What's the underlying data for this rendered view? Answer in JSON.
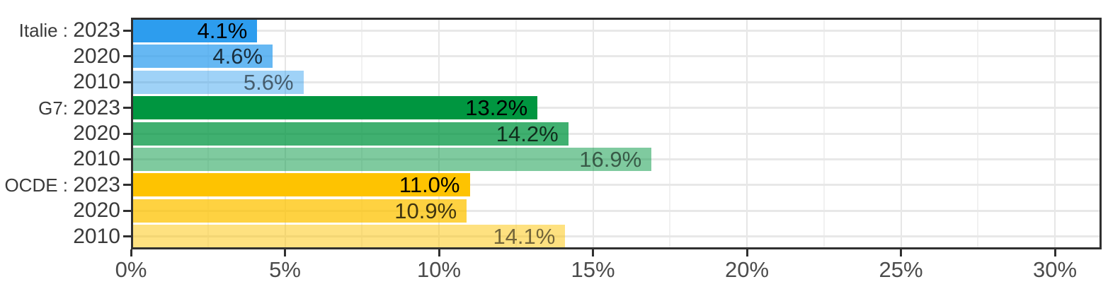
{
  "chart_data": {
    "type": "bar",
    "orientation": "horizontal",
    "title": "",
    "xlabel": "",
    "ylabel": "",
    "xlim": [
      0,
      31.5
    ],
    "x_unit": "percent",
    "grid": "on",
    "legend": "none",
    "groups": [
      "Italie",
      "G7",
      "OCDE"
    ],
    "years": [
      "2023",
      "2020",
      "2010"
    ],
    "x_ticks": [
      {
        "value": 0,
        "label": "0%"
      },
      {
        "value": 5,
        "label": "5%"
      },
      {
        "value": 10,
        "label": "10%"
      },
      {
        "value": 15,
        "label": "15%"
      },
      {
        "value": 20,
        "label": "20%"
      },
      {
        "value": 25,
        "label": "25%"
      },
      {
        "value": 30,
        "label": "30%"
      }
    ],
    "x_minor_gridlines": [
      2.5,
      7.5,
      12.5,
      17.5,
      22.5,
      27.5
    ],
    "bars": [
      {
        "group": "Italie",
        "prefix": "Italie : ",
        "year": "2023",
        "category": "Italie : 2023",
        "value": 4.1,
        "display": "4.1%",
        "fill": "rgba(45,157,238,1)",
        "label_color": "rgba(0,0,0,1)"
      },
      {
        "group": "Italie",
        "prefix": "",
        "year": "2020",
        "category": "2020",
        "value": 4.6,
        "display": "4.6%",
        "fill": "rgba(45,157,238,0.73)",
        "label_color": "rgba(0,0,0,0.75)"
      },
      {
        "group": "Italie",
        "prefix": "",
        "year": "2010",
        "category": "2010",
        "value": 5.6,
        "display": "5.6%",
        "fill": "rgba(45,157,238,0.46)",
        "label_color": "rgba(0,0,0,0.55)"
      },
      {
        "group": "G7",
        "prefix": "G7: ",
        "year": "2023",
        "category": "G7: 2023",
        "value": 13.2,
        "display": "13.2%",
        "fill": "rgba(0,150,64,1)",
        "label_color": "rgba(0,0,0,1)"
      },
      {
        "group": "G7",
        "prefix": "",
        "year": "2020",
        "category": "2020",
        "value": 14.2,
        "display": "14.2%",
        "fill": "rgba(0,150,64,0.75)",
        "label_color": "rgba(0,0,0,0.75)"
      },
      {
        "group": "G7",
        "prefix": "",
        "year": "2010",
        "category": "2010",
        "value": 16.9,
        "display": "16.9%",
        "fill": "rgba(0,150,64,0.5)",
        "label_color": "rgba(0,0,0,0.55)"
      },
      {
        "group": "OCDE",
        "prefix": "OCDE : ",
        "year": "2023",
        "category": "OCDE : 2023",
        "value": 11.0,
        "display": "11.0%",
        "fill": "rgba(254,195,1,1)",
        "label_color": "rgba(0,0,0,1)"
      },
      {
        "group": "OCDE",
        "prefix": "",
        "year": "2020",
        "category": "2020",
        "value": 10.9,
        "display": "10.9%",
        "fill": "rgba(254,195,1,0.75)",
        "label_color": "rgba(0,0,0,0.75)"
      },
      {
        "group": "OCDE",
        "prefix": "",
        "year": "2010",
        "category": "2010",
        "value": 14.1,
        "display": "14.1%",
        "fill": "rgba(254,195,1,0.5)",
        "label_color": "rgba(0,0,0,0.55)"
      }
    ],
    "colors": {
      "italie_base": "#2D9DEE",
      "g7_base": "#009640",
      "ocde_base": "#FEC301",
      "grid_major": "#E6E6E6",
      "grid_minor": "#F1F1F1",
      "panel_border": "#303030",
      "axis_text": "#4B4B4B",
      "category_text": "#3A3A3A"
    }
  }
}
